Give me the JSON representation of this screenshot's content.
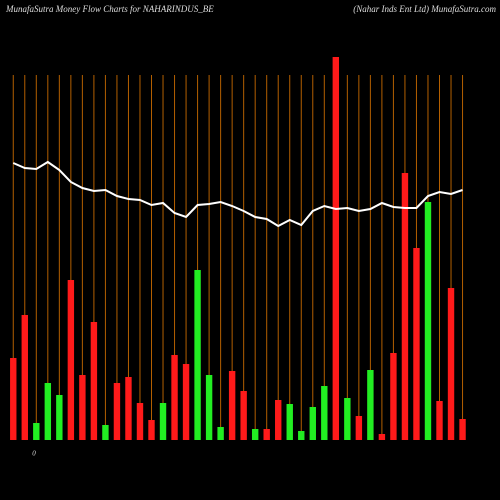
{
  "chart_data": {
    "type": "bar",
    "title": "MunafaSutra  Money Flow  Charts for NAHARINDUS_BE",
    "subtitle": "(Nahar Inds Ent Ltd) MunafaSutra.com",
    "zero_label": "0",
    "categories": [
      null,
      null,
      null,
      null,
      null,
      null,
      null,
      null,
      null,
      null,
      null,
      null,
      null,
      null,
      null,
      null,
      null,
      null,
      null,
      null,
      null,
      null,
      null,
      null,
      null,
      null,
      null,
      null,
      null,
      null,
      null,
      null,
      null,
      null,
      null,
      null,
      null,
      null,
      null,
      null
    ],
    "ylim": [
      0,
      385
    ],
    "series": [
      {
        "type": "bar",
        "up_color": "#22ee22",
        "down_color": "#ff1a1a",
        "values": [
          82,
          125,
          17,
          57,
          45,
          160,
          65,
          118,
          15,
          57,
          63,
          37,
          20,
          37,
          85,
          76,
          170,
          65,
          13,
          69,
          49,
          11,
          11,
          40,
          36,
          9,
          33,
          54,
          383,
          42,
          24,
          70,
          6,
          87,
          267,
          192,
          238,
          39,
          152,
          21
        ],
        "directions": [
          "down",
          "down",
          "up",
          "up",
          "up",
          "down",
          "down",
          "down",
          "up",
          "down",
          "down",
          "down",
          "down",
          "up",
          "down",
          "down",
          "up",
          "up",
          "up",
          "down",
          "down",
          "up",
          "down",
          "down",
          "up",
          "up",
          "up",
          "up",
          "down",
          "up",
          "down",
          "up",
          "down",
          "down",
          "down",
          "down",
          "up",
          "down",
          "down",
          "down"
        ]
      },
      {
        "type": "line",
        "color": "#ffffff",
        "values": [
          277,
          272,
          271,
          278,
          270,
          258,
          252,
          249,
          250,
          244,
          241,
          240,
          235,
          237,
          227,
          223,
          235,
          236,
          238,
          234,
          229,
          223,
          221,
          214,
          220,
          215,
          229,
          234,
          231,
          232,
          229,
          231,
          237,
          233,
          232,
          232,
          244,
          248,
          246,
          250
        ]
      }
    ],
    "gridline_color": "#b35f00"
  }
}
